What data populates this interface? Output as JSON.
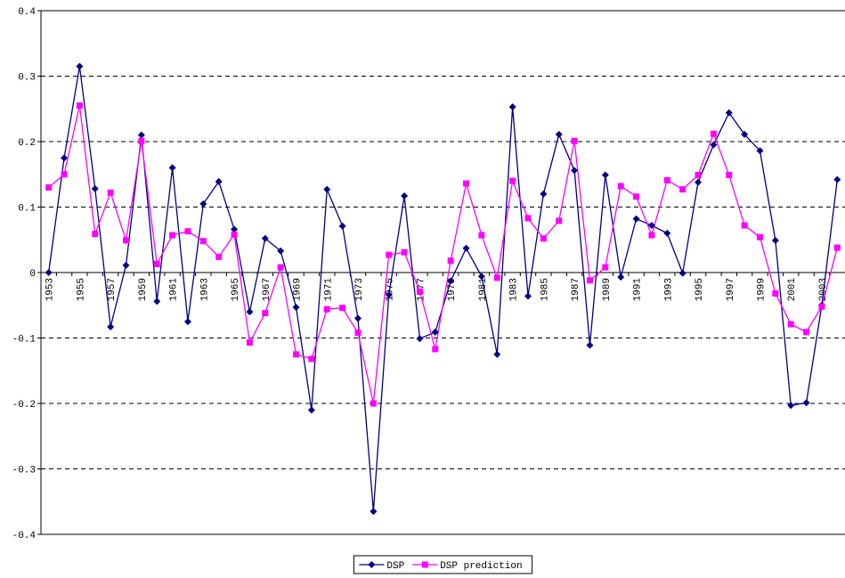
{
  "chart_data": {
    "type": "line",
    "categories": [
      "1953",
      null,
      "1955",
      null,
      "1957",
      null,
      "1959",
      null,
      "1961",
      null,
      "1963",
      null,
      "1965",
      null,
      "1967",
      null,
      "1969",
      null,
      "1971",
      null,
      "1973",
      null,
      "1975",
      null,
      "1977",
      null,
      "1979",
      null,
      "1981",
      null,
      "1983",
      null,
      "1985",
      null,
      "1987",
      null,
      "1989",
      null,
      "1991",
      null,
      "1993",
      null,
      "1995",
      null,
      "1997",
      null,
      "1999",
      null,
      "2001",
      null,
      "2003",
      null
    ],
    "series": [
      {
        "name": "DSP",
        "color": "#000080",
        "marker": "diamond",
        "values": [
          0,
          0.175,
          0.315,
          0.128,
          -0.083,
          0.011,
          0.21,
          -0.044,
          0.16,
          -0.075,
          0.105,
          0.139,
          0.066,
          -0.06,
          0.052,
          0.033,
          -0.053,
          -0.21,
          0.127,
          0.071,
          -0.07,
          -0.365,
          -0.034,
          0.117,
          -0.101,
          -0.091,
          -0.013,
          0.037,
          -0.006,
          -0.125,
          0.253,
          -0.036,
          0.12,
          0.211,
          0.156,
          -0.111,
          0.149,
          -0.007,
          0.082,
          0.072,
          0.06,
          -0.001,
          0.138,
          0.195,
          0.244,
          0.211,
          0.186,
          0.049,
          -0.203,
          -0.199,
          -0.05,
          0.142
        ]
      },
      {
        "name": "DSP prediction",
        "color": "#ff00ff",
        "marker": "square",
        "values": [
          0.13,
          0.15,
          0.255,
          0.059,
          0.122,
          0.049,
          0.201,
          0.013,
          0.057,
          0.063,
          0.048,
          0.024,
          0.058,
          -0.107,
          -0.062,
          0.008,
          -0.125,
          -0.132,
          -0.056,
          -0.054,
          -0.092,
          -0.2,
          0.027,
          0.031,
          -0.029,
          -0.117,
          0.018,
          0.136,
          0.057,
          -0.008,
          0.14,
          0.083,
          0.052,
          0.079,
          0.201,
          -0.012,
          0.008,
          0.132,
          0.116,
          0.057,
          0.141,
          0.127,
          0.149,
          0.212,
          0.149,
          0.072,
          0.054,
          -0.032,
          -0.079,
          -0.091,
          -0.052,
          0.038
        ]
      }
    ],
    "ylim": [
      -0.4,
      0.4
    ],
    "yticks": [
      0.4,
      0.3,
      0.2,
      0.1,
      0,
      -0.1,
      -0.2,
      -0.3,
      -0.4
    ],
    "grid": true,
    "legend": "bottom"
  }
}
